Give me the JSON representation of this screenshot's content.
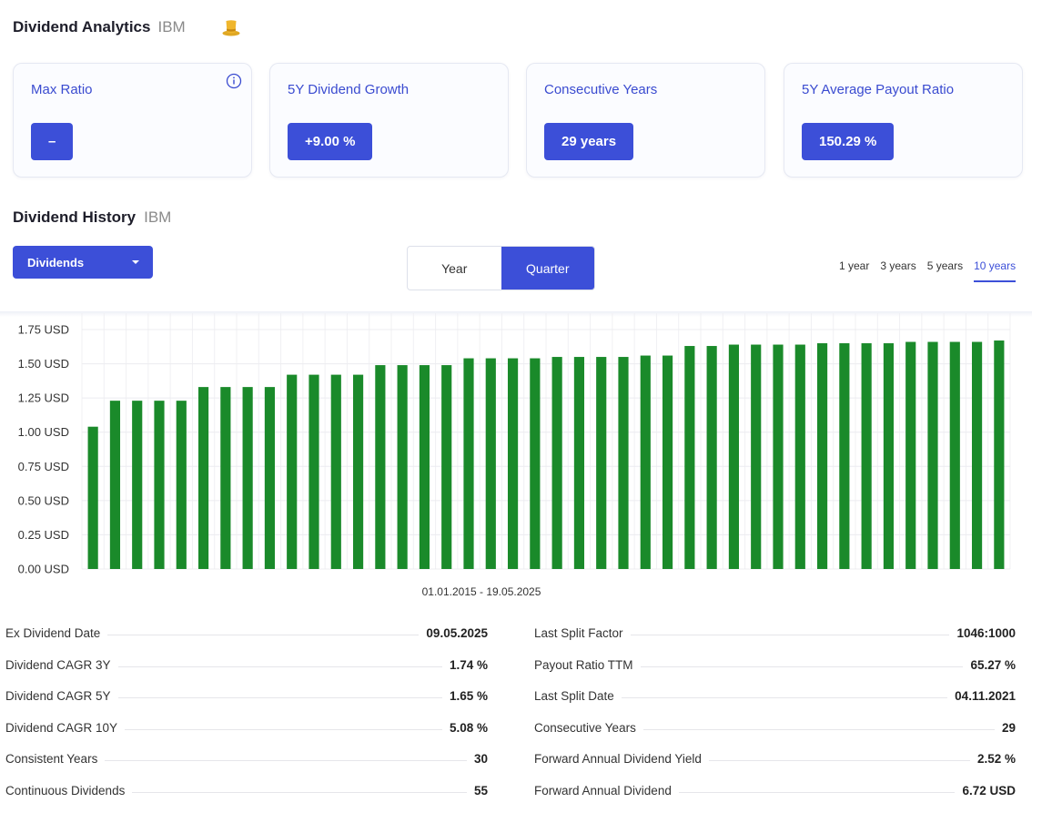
{
  "header": {
    "title": "Dividend Analytics",
    "ticker": "IBM",
    "icon": "top-hat-icon"
  },
  "cards": [
    {
      "label": "Max Ratio",
      "value": "–",
      "info": true
    },
    {
      "label": "5Y Dividend Growth",
      "value": "+9.00 %"
    },
    {
      "label": "Consecutive Years",
      "value": "29 years"
    },
    {
      "label": "5Y Average Payout Ratio",
      "value": "150.29 %"
    }
  ],
  "history": {
    "title": "Dividend History",
    "ticker": "IBM",
    "dropdown": "Dividends",
    "toggle": [
      "Year",
      "Quarter"
    ],
    "toggle_active": "Quarter",
    "ranges": [
      "1 year",
      "3 years",
      "5 years",
      "10 years"
    ],
    "range_active": "10 years"
  },
  "chart_data": {
    "type": "bar",
    "xlabel": "01.01.2015 - 19.05.2025",
    "ylabel": "",
    "y_ticks": [
      "0.00 USD",
      "0.25 USD",
      "0.50 USD",
      "0.75 USD",
      "1.00 USD",
      "1.25 USD",
      "1.50 USD",
      "1.75 USD"
    ],
    "ylim": [
      0,
      1.75
    ],
    "grid": true,
    "color": "#1a8a2a",
    "values": [
      1.04,
      1.23,
      1.23,
      1.23,
      1.23,
      1.33,
      1.33,
      1.33,
      1.33,
      1.42,
      1.42,
      1.42,
      1.42,
      1.49,
      1.49,
      1.49,
      1.49,
      1.54,
      1.54,
      1.54,
      1.54,
      1.55,
      1.55,
      1.55,
      1.55,
      1.56,
      1.56,
      1.63,
      1.63,
      1.64,
      1.64,
      1.64,
      1.64,
      1.65,
      1.65,
      1.65,
      1.65,
      1.66,
      1.66,
      1.66,
      1.66,
      1.67
    ]
  },
  "stats_left": [
    {
      "label": "Ex Dividend Date",
      "value": "09.05.2025"
    },
    {
      "label": "Dividend CAGR 3Y",
      "value": "1.74 %"
    },
    {
      "label": "Dividend CAGR 5Y",
      "value": "1.65 %"
    },
    {
      "label": "Dividend CAGR 10Y",
      "value": "5.08 %"
    },
    {
      "label": "Consistent Years",
      "value": "30"
    },
    {
      "label": "Continuous Dividends",
      "value": "55"
    }
  ],
  "stats_right": [
    {
      "label": "Last Split Factor",
      "value": "1046:1000"
    },
    {
      "label": "Payout Ratio TTM",
      "value": "65.27 %"
    },
    {
      "label": "Last Split Date",
      "value": "04.11.2021"
    },
    {
      "label": "Consecutive Years",
      "value": "29"
    },
    {
      "label": "Forward Annual Dividend Yield",
      "value": "2.52 %"
    },
    {
      "label": "Forward Annual Dividend",
      "value": "6.72 USD"
    }
  ]
}
